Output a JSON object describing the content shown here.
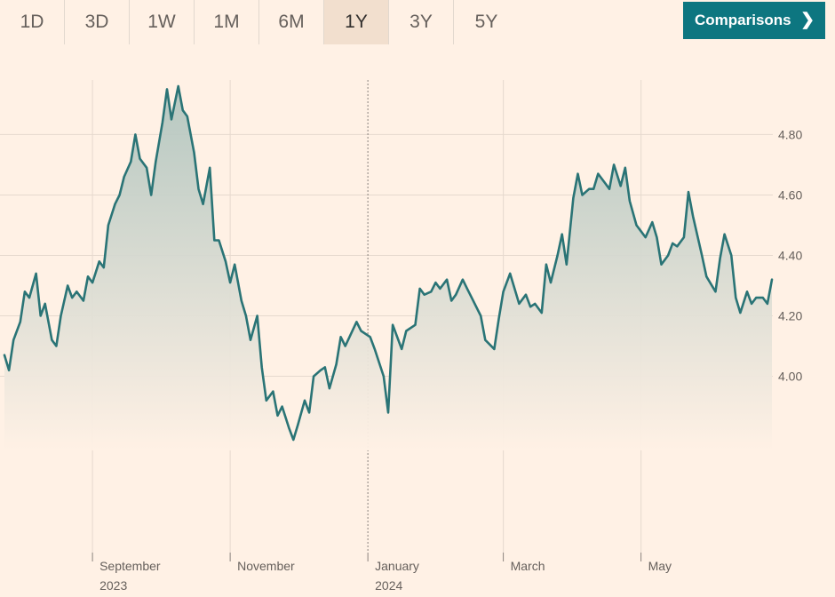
{
  "range_tabs": [
    {
      "label": "1D"
    },
    {
      "label": "3D"
    },
    {
      "label": "1W"
    },
    {
      "label": "1M"
    },
    {
      "label": "6M"
    },
    {
      "label": "1Y",
      "active": true
    },
    {
      "label": "3Y"
    },
    {
      "label": "5Y"
    }
  ],
  "comparisons": {
    "label": "Comparisons",
    "icon": "chevron-right-icon"
  },
  "colors": {
    "background": "#fff1e5",
    "line": "#2a7476",
    "accent": "#0d7680",
    "grid": "#e6d9ce",
    "axis_text": "#66605c"
  },
  "chart_data": {
    "type": "area",
    "ylim": [
      3.74,
      4.96
    ],
    "yticks": [
      4.0,
      4.2,
      4.4,
      4.6,
      4.8
    ],
    "ytick_labels": [
      "4.00",
      "4.20",
      "4.40",
      "4.60",
      "4.80"
    ],
    "grid": true,
    "xlim": [
      "2023-07-24",
      "2024-06-28"
    ],
    "month_ticks": [
      {
        "date": "2023-09-01",
        "label": "September",
        "year": "2023"
      },
      {
        "date": "2023-11-01",
        "label": "November",
        "year": ""
      },
      {
        "date": "2024-01-01",
        "label": "January",
        "year": "2024"
      },
      {
        "date": "2024-03-01",
        "label": "March",
        "year": ""
      },
      {
        "date": "2024-05-01",
        "label": "May",
        "year": ""
      }
    ],
    "x": [
      "2023-07-24",
      "2023-07-26",
      "2023-07-28",
      "2023-07-31",
      "2023-08-02",
      "2023-08-04",
      "2023-08-07",
      "2023-08-09",
      "2023-08-11",
      "2023-08-14",
      "2023-08-16",
      "2023-08-18",
      "2023-08-21",
      "2023-08-23",
      "2023-08-25",
      "2023-08-28",
      "2023-08-30",
      "2023-09-01",
      "2023-09-04",
      "2023-09-06",
      "2023-09-08",
      "2023-09-11",
      "2023-09-13",
      "2023-09-15",
      "2023-09-18",
      "2023-09-20",
      "2023-09-22",
      "2023-09-25",
      "2023-09-27",
      "2023-09-29",
      "2023-10-02",
      "2023-10-04",
      "2023-10-06",
      "2023-10-09",
      "2023-10-11",
      "2023-10-13",
      "2023-10-16",
      "2023-10-18",
      "2023-10-20",
      "2023-10-23",
      "2023-10-25",
      "2023-10-27",
      "2023-10-30",
      "2023-11-01",
      "2023-11-03",
      "2023-11-06",
      "2023-11-08",
      "2023-11-10",
      "2023-11-13",
      "2023-11-15",
      "2023-11-17",
      "2023-11-20",
      "2023-11-22",
      "2023-11-24",
      "2023-11-27",
      "2023-11-29",
      "2023-12-01",
      "2023-12-04",
      "2023-12-06",
      "2023-12-08",
      "2023-12-11",
      "2023-12-13",
      "2023-12-15",
      "2023-12-18",
      "2023-12-20",
      "2023-12-22",
      "2023-12-27",
      "2023-12-29",
      "2024-01-02",
      "2024-01-04",
      "2024-01-08",
      "2024-01-10",
      "2024-01-12",
      "2024-01-16",
      "2024-01-18",
      "2024-01-22",
      "2024-01-24",
      "2024-01-26",
      "2024-01-29",
      "2024-01-31",
      "2024-02-02",
      "2024-02-05",
      "2024-02-07",
      "2024-02-09",
      "2024-02-12",
      "2024-02-14",
      "2024-02-16",
      "2024-02-20",
      "2024-02-22",
      "2024-02-26",
      "2024-02-28",
      "2024-03-01",
      "2024-03-04",
      "2024-03-06",
      "2024-03-08",
      "2024-03-11",
      "2024-03-13",
      "2024-03-15",
      "2024-03-18",
      "2024-03-20",
      "2024-03-22",
      "2024-03-25",
      "2024-03-27",
      "2024-03-29",
      "2024-04-01",
      "2024-04-03",
      "2024-04-05",
      "2024-04-08",
      "2024-04-10",
      "2024-04-12",
      "2024-04-15",
      "2024-04-17",
      "2024-04-19",
      "2024-04-22",
      "2024-04-24",
      "2024-04-26",
      "2024-04-29",
      "2024-05-01",
      "2024-05-03",
      "2024-05-06",
      "2024-05-08",
      "2024-05-10",
      "2024-05-13",
      "2024-05-15",
      "2024-05-17",
      "2024-05-20",
      "2024-05-22",
      "2024-05-24",
      "2024-05-28",
      "2024-05-30",
      "2024-06-03",
      "2024-06-05",
      "2024-06-07",
      "2024-06-10",
      "2024-06-12",
      "2024-06-14",
      "2024-06-17",
      "2024-06-19",
      "2024-06-21",
      "2024-06-24",
      "2024-06-26",
      "2024-06-28"
    ],
    "series": [
      {
        "values": [
          4.07,
          4.02,
          4.12,
          4.18,
          4.28,
          4.26,
          4.34,
          4.2,
          4.24,
          4.12,
          4.1,
          4.2,
          4.3,
          4.26,
          4.28,
          4.25,
          4.33,
          4.31,
          4.38,
          4.36,
          4.5,
          4.57,
          4.6,
          4.66,
          4.71,
          4.8,
          4.72,
          4.69,
          4.6,
          4.71,
          4.84,
          4.95,
          4.85,
          4.96,
          4.88,
          4.86,
          4.74,
          4.62,
          4.57,
          4.69,
          4.45,
          4.45,
          4.38,
          4.31,
          4.37,
          4.25,
          4.2,
          4.12,
          4.2,
          4.03,
          3.92,
          3.95,
          3.87,
          3.9,
          3.83,
          3.79,
          3.84,
          3.92,
          3.88,
          4.0,
          4.02,
          4.03,
          3.96,
          4.04,
          4.13,
          4.1,
          4.18,
          4.15,
          4.13,
          4.09,
          4.0,
          3.88,
          4.17,
          4.09,
          4.15,
          4.17,
          4.29,
          4.27,
          4.28,
          4.31,
          4.29,
          4.32,
          4.25,
          4.27,
          4.32,
          4.29,
          4.26,
          4.2,
          4.12,
          4.09,
          4.19,
          4.28,
          4.34,
          4.29,
          4.24,
          4.27,
          4.23,
          4.24,
          4.21,
          4.37,
          4.31,
          4.4,
          4.47,
          4.37,
          4.59,
          4.67,
          4.6,
          4.62,
          4.62,
          4.67,
          4.64,
          4.62,
          4.7,
          4.63,
          4.69,
          4.58,
          4.5,
          4.48,
          4.46,
          4.51,
          4.46,
          4.37,
          4.4,
          4.44,
          4.43,
          4.46,
          4.61,
          4.53,
          4.4,
          4.33,
          4.28,
          4.39,
          4.47,
          4.4,
          4.26,
          4.21,
          4.28,
          4.24,
          4.26,
          4.26,
          4.24,
          4.32
        ]
      }
    ]
  }
}
